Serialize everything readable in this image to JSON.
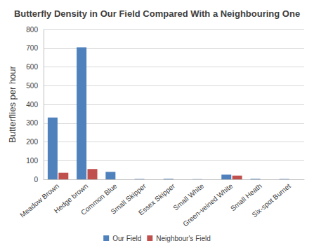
{
  "chart_data": {
    "type": "bar",
    "title": "Butterfly Density in Our Field Compared With a Neighbouring One",
    "y_label": "Butterflies per hour",
    "categories": [
      "Meadow Brown",
      "Hedge brown",
      "Common Blue",
      "Small Skipper",
      "Essex Skipper",
      "Small White",
      "Green-veined White",
      "Small Heath",
      "Six-spot Burnet"
    ],
    "series": [
      {
        "name": "Our Field",
        "color": "#4f81bd",
        "values": [
          330,
          705,
          40,
          2,
          3,
          1,
          25,
          3,
          2
        ]
      },
      {
        "name": "Neighbour's Field",
        "color": "#c0504d",
        "values": [
          35,
          55,
          0,
          0,
          0,
          0,
          20,
          0,
          0
        ]
      }
    ],
    "ylim": [
      0,
      800
    ],
    "yticks": [
      0,
      100,
      200,
      300,
      400,
      500,
      600,
      700,
      800
    ],
    "grid": true,
    "legend": "bottom"
  }
}
